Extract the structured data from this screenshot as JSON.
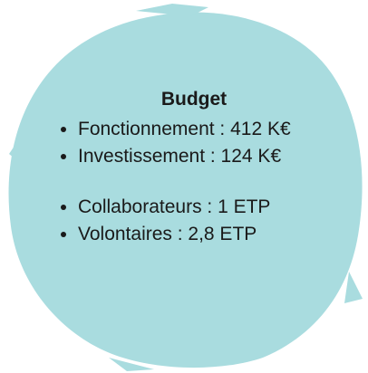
{
  "title": "Budget",
  "groups": [
    [
      "Fonctionnement : 412 K€",
      "Investissement : 124 K€"
    ],
    [
      "Collaborateurs : 1 ETP",
      "Volontaires : 2,8 ETP"
    ]
  ]
}
